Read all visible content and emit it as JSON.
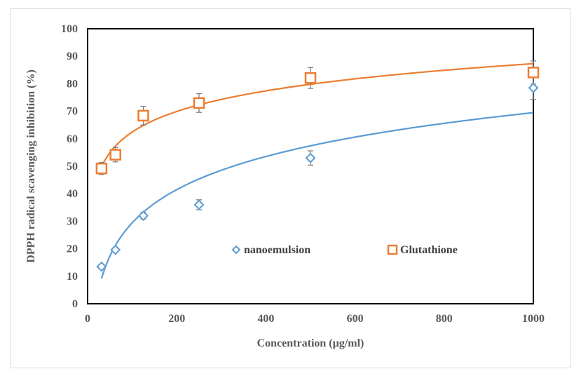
{
  "chart_data": {
    "type": "scatter",
    "xlabel": "Concentration (µg/ml)",
    "ylabel": "DPPH radical scavenging inhibition (%)",
    "xlim": [
      0,
      1000
    ],
    "ylim": [
      0,
      100
    ],
    "x_ticks": [
      0,
      200,
      400,
      600,
      800,
      1000
    ],
    "y_ticks": [
      0,
      10,
      20,
      30,
      40,
      50,
      60,
      70,
      80,
      90,
      100
    ],
    "grid": false,
    "legend_position": "inside-lower-right",
    "series": [
      {
        "name": "nanoemulsion",
        "color": "#5b9bd5",
        "marker": "diamond",
        "x": [
          31.25,
          62.5,
          125,
          250,
          500,
          1000
        ],
        "y": [
          13.5,
          19.6,
          32.0,
          36.0,
          53.0,
          78.5
        ],
        "error": [
          0.8,
          0.8,
          1.2,
          1.8,
          2.6,
          4.2
        ],
        "trendline": {
          "type": "logarithmic",
          "a": 17.4,
          "b": -50.7
        }
      },
      {
        "name": "Glutathione",
        "color": "#ed7d31",
        "marker": "square",
        "x": [
          31.25,
          62.5,
          125,
          250,
          500,
          1000
        ],
        "y": [
          49.2,
          54.2,
          68.4,
          73.0,
          82.1,
          84.1
        ],
        "error": [
          2.2,
          2.6,
          3.4,
          3.4,
          3.8,
          4.2
        ],
        "trendline": {
          "type": "logarithmic",
          "a": 10.8,
          "b": 12.7
        }
      }
    ]
  }
}
